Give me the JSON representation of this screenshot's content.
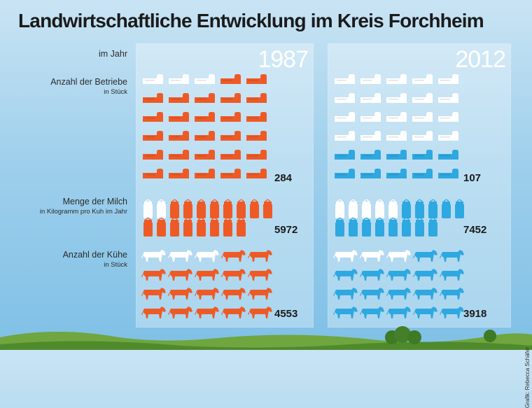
{
  "title": "Landwirtschaftliche Entwicklung im Kreis Forchheim",
  "header_label": "im Jahr",
  "years": [
    "1987",
    "2012"
  ],
  "colors": {
    "y1987": "#ee5a26",
    "y2012": "#2ea8e0",
    "inactive": "#ffffff"
  },
  "rows": [
    {
      "label": "Anzahl der Betriebe",
      "unit": "in Stück",
      "icon": "farm-building-icon"
    },
    {
      "label": "Menge der Milch",
      "unit": "in Kilogramm pro Kuh im Jahr",
      "icon": "milk-can-icon"
    },
    {
      "label": "Anzahl der Kühe",
      "unit": "in Stück",
      "icon": "cow-icon"
    }
  ],
  "chart_data": {
    "type": "table",
    "title": "Landwirtschaftliche Entwicklung im Kreis Forchheim",
    "categories": [
      "Anzahl der Betriebe",
      "Menge der Milch",
      "Anzahl der Kühe"
    ],
    "series": [
      {
        "name": "1987",
        "values": [
          284,
          5972,
          4553
        ],
        "icons_filled": [
          27,
          16,
          17
        ],
        "icons_total": [
          30,
          18,
          20
        ]
      },
      {
        "name": "2012",
        "values": [
          107,
          7452,
          3918
        ],
        "icons_filled": [
          10,
          13,
          17
        ],
        "icons_total": [
          30,
          18,
          20
        ]
      }
    ]
  },
  "credit": "Grafik: Rebecca Schäfer"
}
